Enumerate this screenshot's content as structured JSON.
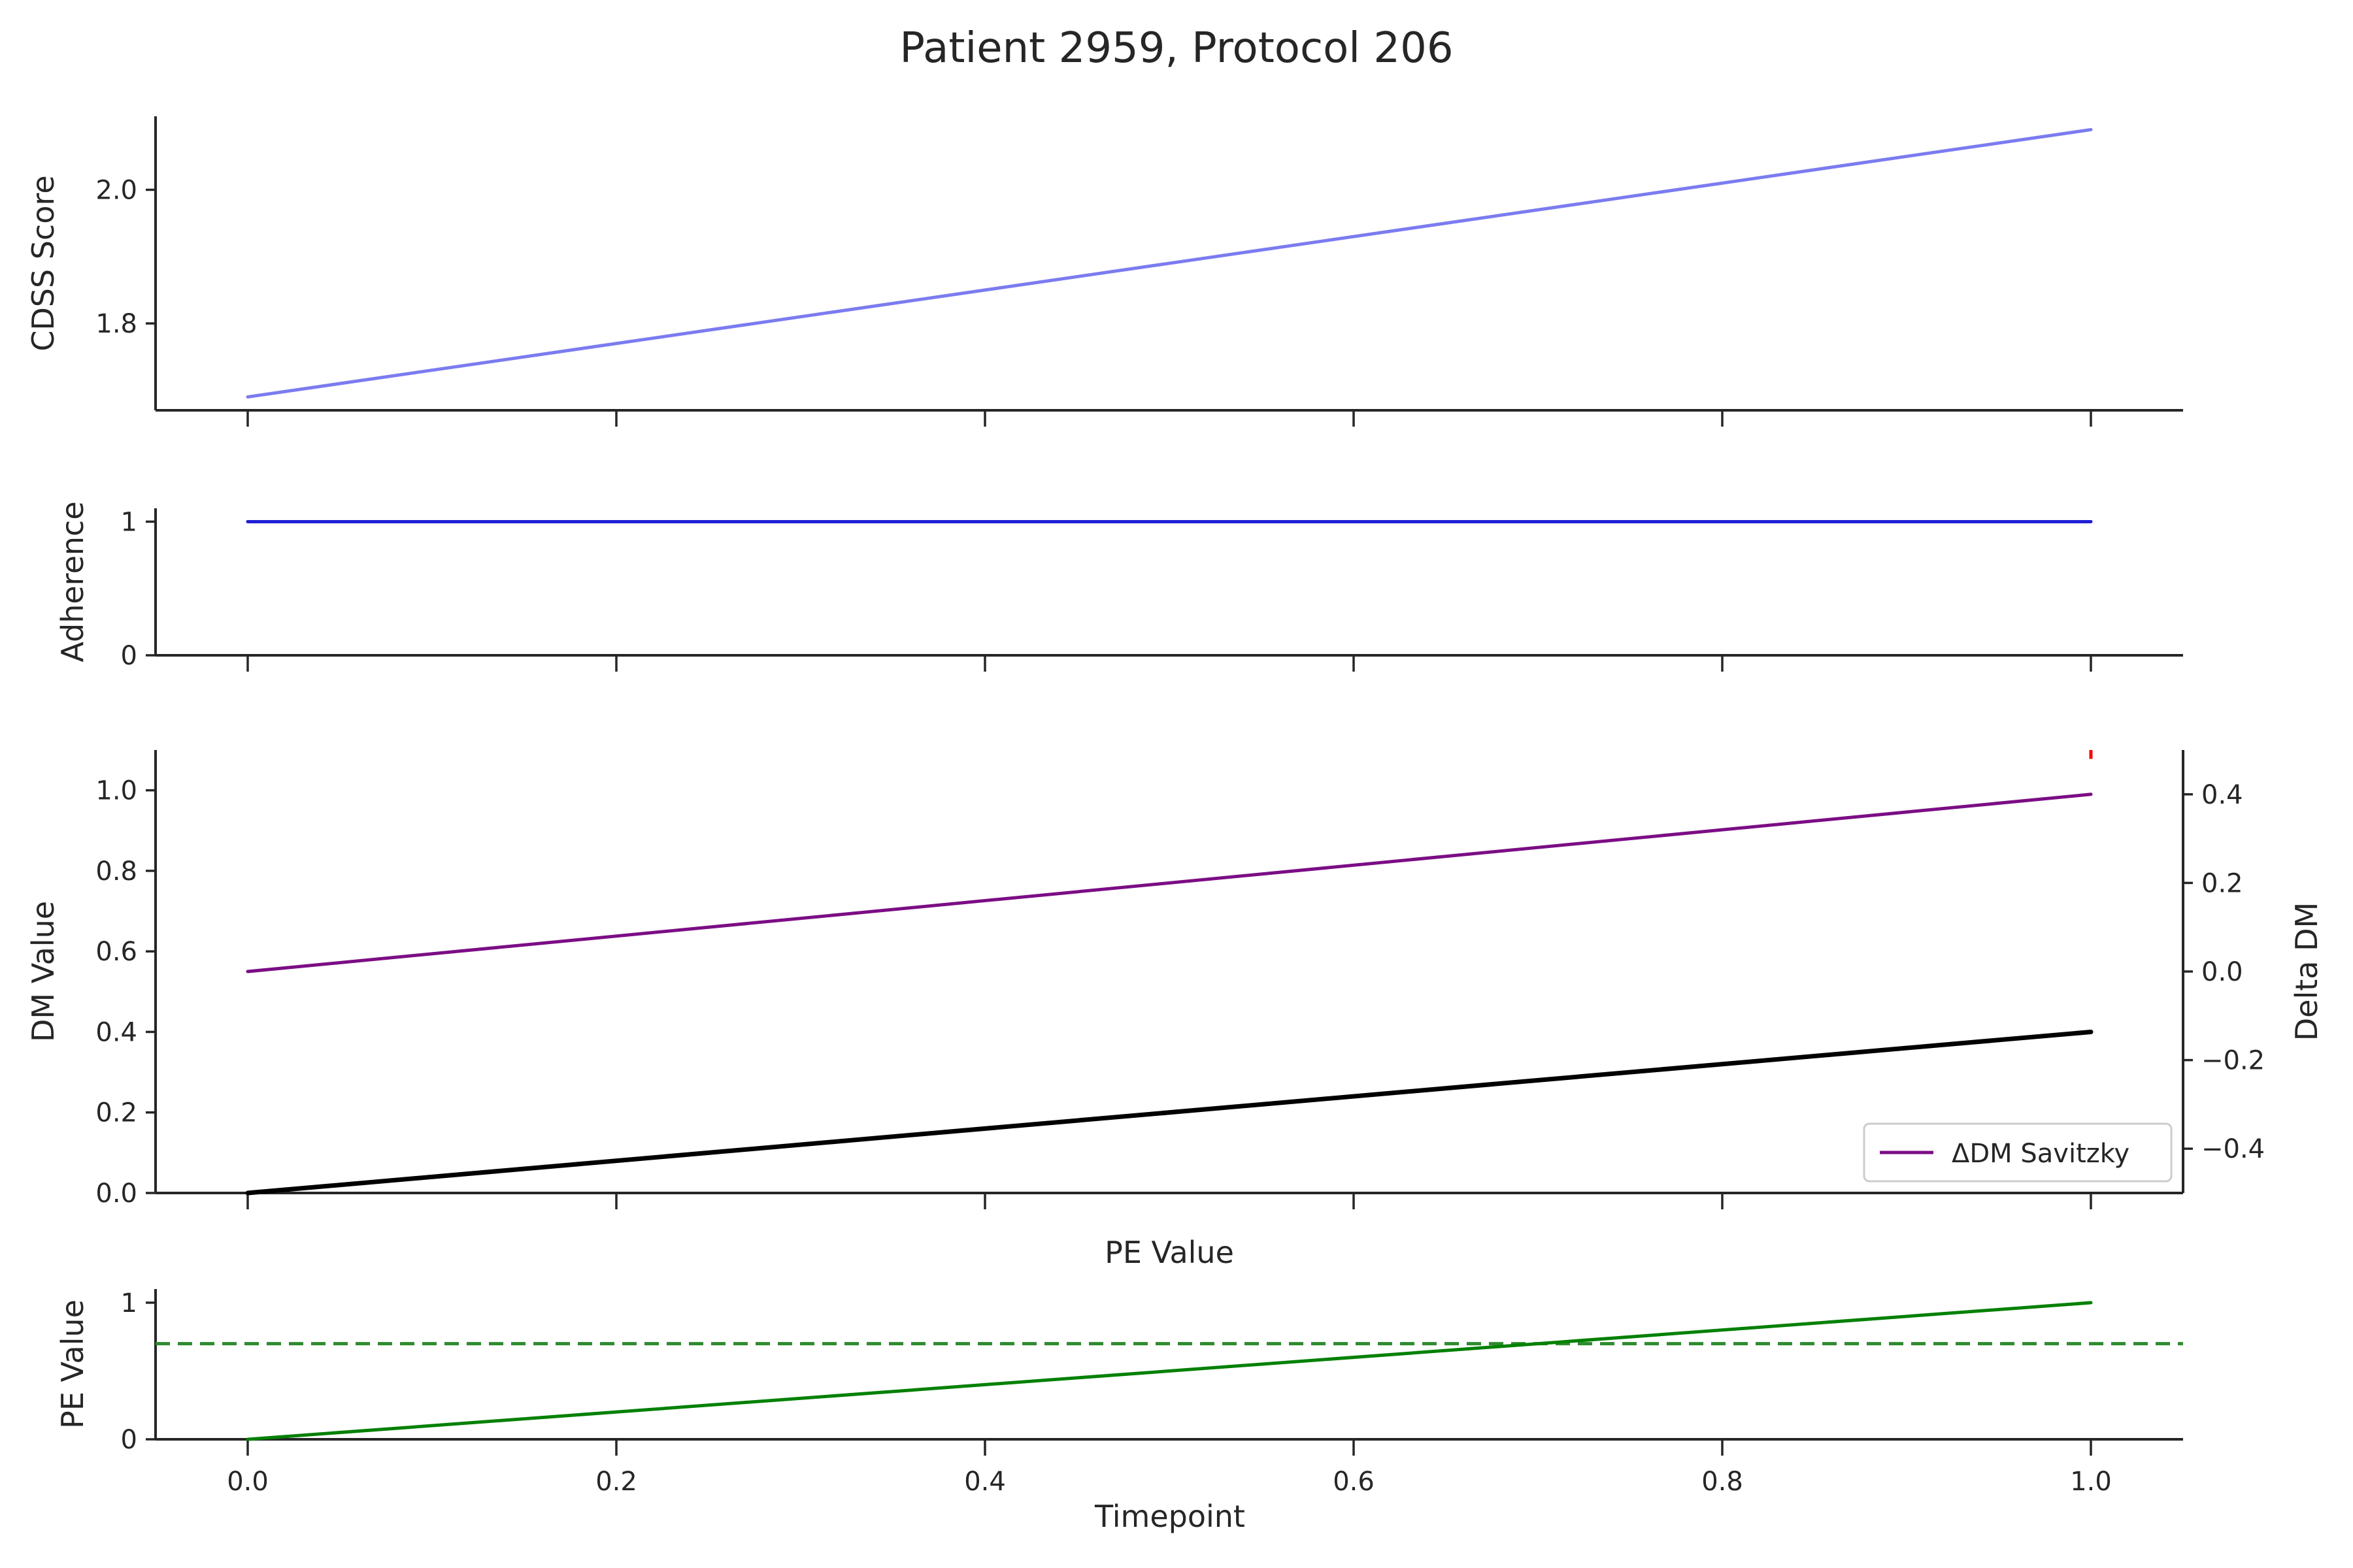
{
  "chart_data": {
    "type": "line",
    "title": "Patient 2959, Protocol 206",
    "xlabel": "Timepoint",
    "xlim": [
      -0.05,
      1.05
    ],
    "x_ticks": [
      0.0,
      0.2,
      0.4,
      0.6,
      0.8,
      1.0
    ],
    "x_tick_labels": [
      "0.0",
      "0.2",
      "0.4",
      "0.6",
      "0.8",
      "1.0"
    ],
    "panels": [
      {
        "ylabel": "CDSS Score",
        "ylim": [
          1.67,
          2.11
        ],
        "y_ticks": [
          1.8,
          2.0
        ],
        "y_tick_labels": [
          "1.8",
          "2.0"
        ],
        "series": [
          {
            "color": "#7b7bf0",
            "x": [
              0.0,
              1.0
            ],
            "y": [
              1.69,
              2.09
            ]
          }
        ]
      },
      {
        "ylabel": "Adherence",
        "ylim": [
          0,
          1.1
        ],
        "y_ticks": [
          0,
          1
        ],
        "y_tick_labels": [
          "0",
          "1"
        ],
        "series": [
          {
            "color": "#1f1fd6",
            "x": [
              0.0,
              1.0
            ],
            "y": [
              1,
              1
            ]
          }
        ]
      },
      {
        "ylabel": "DM Value",
        "ylim": [
          0,
          1.1
        ],
        "y_ticks": [
          0.0,
          0.2,
          0.4,
          0.6,
          0.8,
          1.0
        ],
        "y_tick_labels": [
          "0.0",
          "0.2",
          "0.4",
          "0.6",
          "0.8",
          "1.0"
        ],
        "series": [
          {
            "color": "#000000",
            "x": [
              0.0,
              1.0
            ],
            "y": [
              0.0,
              0.4
            ]
          }
        ],
        "secondary": {
          "ylabel": "Delta DM",
          "ylim": [
            -0.5,
            0.5
          ],
          "y_ticks": [
            -0.4,
            -0.2,
            0.0,
            0.2,
            0.4
          ],
          "y_tick_labels": [
            "−0.4",
            "−0.2",
            "0.0",
            "0.2",
            "0.4"
          ],
          "series": [
            {
              "name": "ΔDM Savitzky",
              "color": "#7b0d85",
              "x": [
                0.0,
                1.0
              ],
              "y": [
                0.0,
                0.4
              ]
            }
          ],
          "markers": [
            {
              "color": "#ff0000",
              "x": 1.0,
              "y_range": [
                0.48,
                0.5
              ]
            }
          ],
          "legend": {
            "placement": "lower-right",
            "entries": [
              "ΔDM Savitzky"
            ]
          }
        }
      },
      {
        "panel_title": "PE Value",
        "ylabel": "PE Value",
        "ylim": [
          0,
          1.1
        ],
        "y_ticks": [
          0,
          1
        ],
        "y_tick_labels": [
          "0",
          "1"
        ],
        "series": [
          {
            "color": "#008000",
            "x": [
              0.0,
              1.0
            ],
            "y": [
              0.0,
              1.0
            ]
          }
        ],
        "hlines": [
          {
            "y": 0.7,
            "color": "#2e8b2e",
            "style": "dashed"
          }
        ]
      }
    ]
  }
}
